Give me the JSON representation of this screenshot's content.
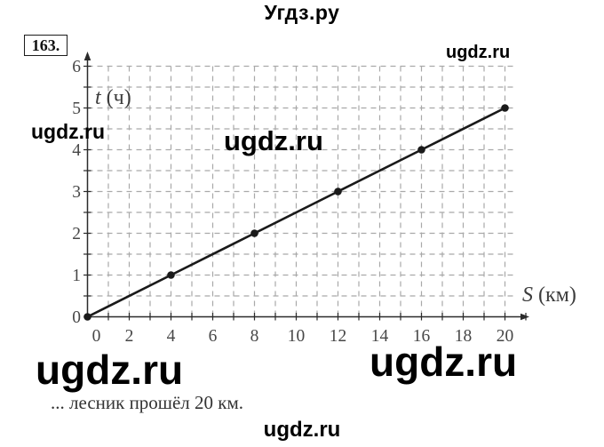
{
  "page": {
    "title": "Угдз.ру",
    "problem_number": "163.",
    "caption": "... лесник прошёл 20 км."
  },
  "watermarks": {
    "top_right": "ugdz.ru",
    "left": "ugdz.ru",
    "middle": "ugdz.ru",
    "bottom_left": "ugdz.ru",
    "bottom_right": "ugdz.ru",
    "bottom_center": "ugdz.ru"
  },
  "chart_data": {
    "type": "line",
    "title": "",
    "xlabel": "S (км)",
    "ylabel": "t (ч)",
    "x": [
      0,
      4,
      8,
      12,
      16,
      20
    ],
    "y": [
      0,
      1,
      2,
      3,
      4,
      5
    ],
    "x_ticks": [
      0,
      2,
      4,
      6,
      8,
      10,
      12,
      14,
      16,
      18,
      20
    ],
    "y_ticks": [
      0,
      1,
      2,
      3,
      4,
      5,
      6
    ],
    "xlim": [
      0,
      21
    ],
    "ylim": [
      0,
      6.3
    ],
    "x_minor_step": 1,
    "y_minor_step": 0.5,
    "grid": "dashed",
    "legend": "none",
    "line_color": "#1a1a1a",
    "grid_color": "#a9a9a9",
    "axis_color": "#2b2b2b",
    "label_color": "#474747"
  }
}
